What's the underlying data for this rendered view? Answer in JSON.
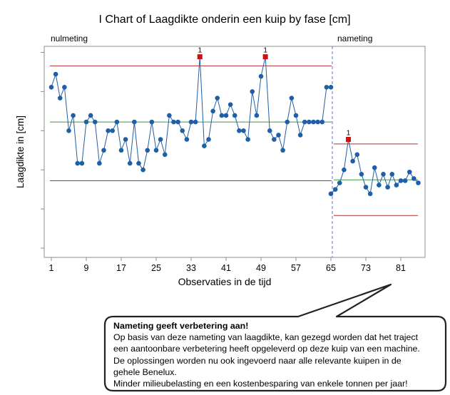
{
  "chart_data": {
    "type": "line",
    "title": "I Chart of Laagdikte onderin een kuip by fase [cm]",
    "xlabel": "Observaties in de tijd",
    "ylabel": "Laagdikte in [cm]",
    "xlim": [
      0,
      90
    ],
    "ylim": [
      0,
      100
    ],
    "x_ticks": [
      1,
      9,
      17,
      25,
      33,
      41,
      49,
      57,
      65,
      73,
      81
    ],
    "grid": false,
    "phase_divider_x": 65,
    "phases": [
      {
        "name": "nulmeting",
        "x_range": [
          1,
          65
        ],
        "ucl": 83.8,
        "center": 58,
        "lcl": 31,
        "series": {
          "x": [
            1,
            2,
            3,
            4,
            5,
            6,
            7,
            8,
            9,
            10,
            11,
            12,
            13,
            14,
            15,
            16,
            17,
            18,
            19,
            20,
            21,
            22,
            23,
            24,
            25,
            26,
            27,
            28,
            29,
            30,
            31,
            32,
            33,
            34,
            35,
            36,
            37,
            38,
            39,
            40,
            41,
            42,
            43,
            44,
            45,
            46,
            47,
            48,
            49,
            50,
            51,
            52,
            53,
            54,
            55,
            56,
            57,
            58,
            59,
            60,
            61,
            62,
            63,
            64,
            65
          ],
          "values": [
            74,
            80,
            69,
            74,
            54,
            61,
            39,
            39,
            58,
            61,
            58,
            39,
            45,
            54,
            54,
            58,
            45,
            50,
            39,
            58,
            39,
            36,
            45,
            58,
            45,
            50,
            43,
            61,
            58,
            58,
            54,
            50,
            58,
            58,
            88,
            47,
            50,
            63,
            69,
            61,
            61,
            66,
            61,
            54,
            54,
            50,
            72,
            61,
            79,
            88,
            54,
            50,
            52,
            45,
            58,
            69,
            61,
            52,
            58,
            58,
            58,
            58,
            58,
            74,
            74
          ]
        },
        "out_of_control": [
          {
            "x": 35,
            "value": 88,
            "label": "1"
          },
          {
            "x": 50,
            "value": 88,
            "label": "1"
          }
        ]
      },
      {
        "name": "nameting",
        "x_range": [
          65,
          85
        ],
        "ucl": 47.9,
        "center": 31.4,
        "lcl": 15,
        "series": {
          "x": [
            65,
            66,
            67,
            68,
            69,
            70,
            71,
            72,
            73,
            74,
            75,
            76,
            77,
            78,
            79,
            80,
            81,
            82,
            83,
            84,
            85
          ],
          "values": [
            25,
            27,
            30,
            36,
            50,
            40,
            43,
            34,
            28,
            25,
            37,
            29,
            34,
            28,
            34,
            29,
            31,
            31,
            35,
            32,
            30
          ]
        },
        "out_of_control": [
          {
            "x": 69,
            "value": 50,
            "label": "1"
          }
        ]
      }
    ],
    "colors": {
      "data": "#1f5fa8",
      "ucl_lcl": "#b03030",
      "center": "#3a9a3a",
      "flagged": "#d01010",
      "divider": "#6a6ad0"
    }
  },
  "callout": {
    "title": "Nameting geeft verbetering aan!",
    "lines": [
      "Op basis van deze nameting van laagdikte, kan gezegd worden dat het traject",
      "een aantoonbare verbetering  heeft opgeleverd op deze kuip van een machine.",
      "De oplossingen worden nu ook ingevoerd naar alle relevante kuipen in de",
      "gehele Benelux.",
      "Minder milieubelasting en een kostenbesparing van enkele tonnen per jaar!"
    ]
  }
}
